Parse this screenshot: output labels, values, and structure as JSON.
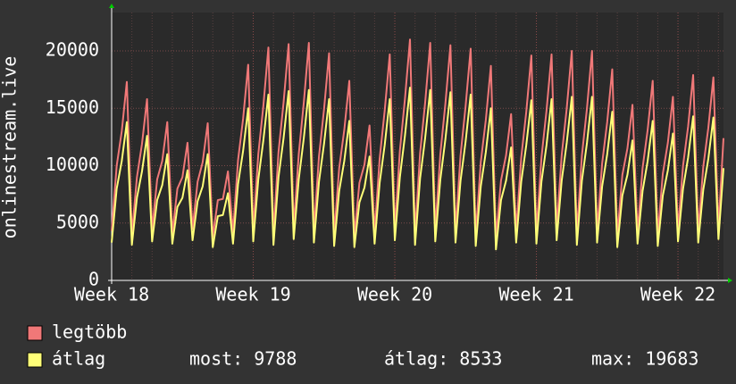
{
  "chart_data": {
    "type": "line",
    "y_label": "onlinestream.live",
    "categories": [
      "Week 18",
      null,
      null,
      null,
      null,
      null,
      null,
      null,
      null,
      null,
      null,
      null,
      null,
      null,
      null,
      null,
      null,
      null,
      null,
      null,
      null,
      null,
      null,
      null,
      null,
      null,
      null,
      null,
      "Week 19",
      null,
      null,
      null,
      null,
      null,
      null,
      null,
      null,
      null,
      null,
      null,
      null,
      null,
      null,
      null,
      null,
      null,
      null,
      null,
      null,
      null,
      null,
      null,
      null,
      null,
      null,
      null,
      "Week 20",
      null,
      null,
      null,
      null,
      null,
      null,
      null,
      null,
      null,
      null,
      null,
      null,
      null,
      null,
      null,
      null,
      null,
      null,
      null,
      null,
      null,
      null,
      null,
      null,
      null,
      null,
      null,
      "Week 21",
      null,
      null,
      null,
      null,
      null,
      null,
      null,
      null,
      null,
      null,
      null,
      null,
      null,
      null,
      null,
      null,
      null,
      null,
      null,
      null,
      null,
      null,
      null,
      null,
      null,
      null,
      null,
      "Week 22",
      null,
      null,
      null,
      null,
      null,
      null,
      null,
      null,
      null
    ],
    "series": [
      {
        "name": "legtöbb",
        "color": "#f07878",
        "values": [
          4300,
          10000,
          13000,
          17300,
          4000,
          9000,
          11900,
          15800,
          4400,
          8800,
          10400,
          13800,
          4100,
          8000,
          9000,
          12000,
          4500,
          8600,
          10300,
          13700,
          3800,
          7000,
          7100,
          9500,
          4200,
          10500,
          14100,
          18800,
          4400,
          11000,
          15200,
          20300,
          4100,
          11200,
          15500,
          20600,
          4600,
          11000,
          15500,
          20700,
          4300,
          10800,
          14900,
          19800,
          4000,
          9800,
          13100,
          17400,
          3900,
          8500,
          10100,
          13500,
          4200,
          10600,
          14800,
          19700,
          4500,
          11300,
          15800,
          21000,
          4100,
          11100,
          15500,
          20700,
          4400,
          11000,
          15400,
          20500,
          4300,
          10900,
          15200,
          20200,
          4000,
          10300,
          14000,
          18700,
          3700,
          8700,
          10900,
          14500,
          4300,
          10700,
          14700,
          19600,
          4200,
          10700,
          14800,
          19700,
          4500,
          10900,
          15000,
          20000,
          4100,
          10900,
          15000,
          20000,
          4300,
          10200,
          13800,
          18400,
          3900,
          9200,
          11500,
          15300,
          4200,
          9800,
          13100,
          17400,
          4000,
          9300,
          12000,
          16000,
          4400,
          10000,
          13400,
          17900,
          4300,
          9900,
          13300,
          17700,
          4600,
          12400
        ]
      },
      {
        "name": "átlag",
        "color": "#ffff78",
        "values": [
          3300,
          8000,
          10400,
          13800,
          3100,
          7200,
          9500,
          12600,
          3400,
          7000,
          8300,
          11000,
          3200,
          6400,
          7200,
          9600,
          3500,
          6900,
          8200,
          11000,
          2900,
          5600,
          5700,
          7600,
          3200,
          8400,
          11300,
          15000,
          3400,
          8800,
          12200,
          16200,
          3100,
          9000,
          12400,
          16500,
          3600,
          8800,
          12400,
          16600,
          3300,
          8600,
          11900,
          15800,
          3000,
          7800,
          10400,
          13900,
          2900,
          6800,
          8100,
          10800,
          3200,
          8500,
          11800,
          15800,
          3500,
          9000,
          12600,
          16800,
          3100,
          8900,
          12400,
          16600,
          3400,
          8800,
          12300,
          16400,
          3300,
          8700,
          12100,
          16200,
          3000,
          8200,
          11200,
          15000,
          2700,
          7000,
          8700,
          11600,
          3300,
          8600,
          11800,
          15700,
          3200,
          8600,
          11800,
          15800,
          3500,
          8700,
          12000,
          16000,
          3100,
          8700,
          12000,
          16000,
          3300,
          8200,
          11000,
          14700,
          2900,
          7400,
          9200,
          12200,
          3200,
          7800,
          10400,
          13900,
          3000,
          7400,
          9600,
          12800,
          3400,
          8000,
          10700,
          14300,
          3300,
          7900,
          10600,
          14200,
          3600,
          9788
        ]
      }
    ],
    "stats": [
      "most: 9788",
      "átlag: 8533",
      "max: 19683"
    ],
    "ylim": [
      0,
      23350
    ],
    "yticks": [
      0,
      5000,
      10000,
      15000,
      20000
    ],
    "grid": true
  }
}
